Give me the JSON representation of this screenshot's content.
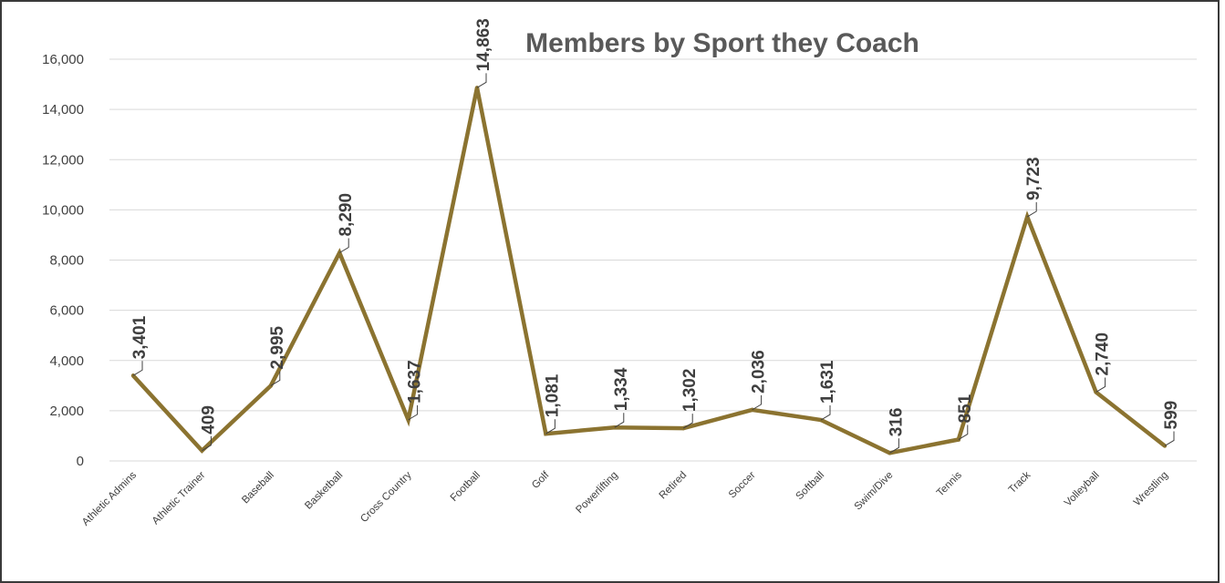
{
  "chart_data": {
    "type": "line",
    "title": "Members by Sport they Coach",
    "xlabel": "",
    "ylabel": "",
    "categories": [
      "Athletic Admins",
      "Athletic Trainer",
      "Baseball",
      "Basketball",
      "Cross Country",
      "Football",
      "Golf",
      "Powerlifting",
      "Retired",
      "Soccer",
      "Softball",
      "Swim/Dive",
      "Tennis",
      "Track",
      "Volleyball",
      "Wrestling"
    ],
    "values": [
      3401,
      409,
      2995,
      8290,
      1637,
      14863,
      1081,
      1334,
      1302,
      2036,
      1631,
      316,
      851,
      9723,
      2740,
      599
    ],
    "data_labels": [
      "3,401",
      "409",
      "2,995",
      "8,290",
      "1,637",
      "14,863",
      "1,081",
      "1,334",
      "1,302",
      "2,036",
      "1,631",
      "316",
      "851",
      "9,723",
      "2,740",
      "599"
    ],
    "yticks": [
      0,
      2000,
      4000,
      6000,
      8000,
      10000,
      12000,
      14000,
      16000
    ],
    "ytick_labels": [
      "0",
      "2,000",
      "4,000",
      "6,000",
      "8,000",
      "10,000",
      "12,000",
      "14,000",
      "16,000"
    ],
    "ylim": [
      0,
      16000
    ],
    "grid": true,
    "legend": "none",
    "line_color": "#8B7330"
  }
}
